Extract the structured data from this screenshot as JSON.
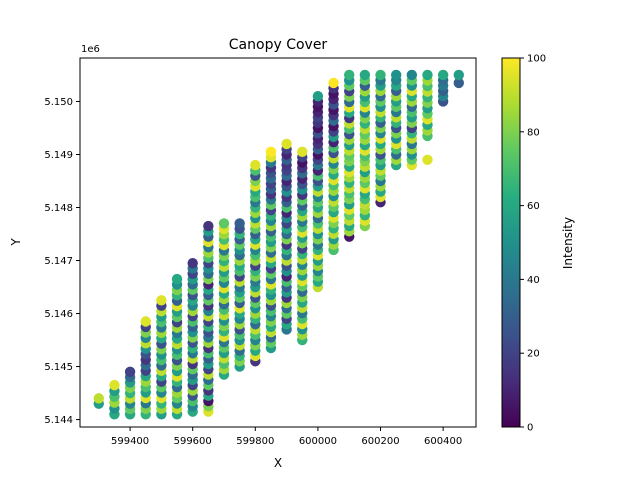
{
  "chart_data": {
    "type": "scatter",
    "title": "Canopy Cover",
    "xlabel": "X",
    "ylabel": "Y",
    "y_offset_label": "1e6",
    "xlim": [
      599240,
      600505
    ],
    "ylim": [
      5143860,
      5150820
    ],
    "x_ticks": [
      599400,
      599600,
      599800,
      600000,
      600200,
      600400
    ],
    "x_tick_labels": [
      "599400",
      "599600",
      "599800",
      "600000",
      "600200",
      "600400"
    ],
    "y_ticks": [
      5144000,
      5145000,
      5146000,
      5147000,
      5148000,
      5149000,
      5150000
    ],
    "y_tick_labels": [
      "5.144",
      "5.145",
      "5.146",
      "5.147",
      "5.148",
      "5.149",
      "5.150"
    ],
    "colorbar": {
      "label": "Intensity",
      "range": [
        0,
        100
      ],
      "ticks": [
        0,
        20,
        40,
        60,
        80,
        100
      ],
      "tick_labels": [
        "0",
        "20",
        "40",
        "60",
        "80",
        "100"
      ],
      "colormap": "viridis"
    },
    "y_step": 100,
    "columns": [
      {
        "x": 599300,
        "y_min": 5144300,
        "y_max": 5144400,
        "intensity": [
          55,
          90
        ]
      },
      {
        "x": 599350,
        "y_min": 5144100,
        "y_max": 5144650,
        "intensity": [
          60,
          50,
          85,
          70,
          55,
          95
        ]
      },
      {
        "x": 599400,
        "y_min": 5144100,
        "y_max": 5144900,
        "intensity": [
          60,
          75,
          45,
          90,
          65,
          80,
          55,
          35,
          20
        ]
      },
      {
        "x": 599450,
        "y_min": 5144100,
        "y_max": 5145850,
        "intensity": [
          65,
          80,
          40,
          95,
          55,
          70,
          85,
          60,
          20,
          35,
          15,
          25,
          50,
          90,
          45,
          80,
          20,
          95
        ]
      },
      {
        "x": 599500,
        "y_min": 5144100,
        "y_max": 5146250,
        "intensity": [
          55,
          85,
          65,
          95,
          45,
          75,
          20,
          60,
          90,
          35,
          70,
          50,
          80,
          25,
          60,
          85,
          40,
          70,
          55,
          90,
          20,
          95
        ]
      },
      {
        "x": 599550,
        "y_min": 5144100,
        "y_max": 5146650,
        "intensity": [
          60,
          90,
          45,
          75,
          85,
          35,
          65,
          95,
          55,
          80,
          25,
          70,
          50,
          90,
          60,
          40,
          85,
          20,
          75,
          55,
          95,
          30,
          65,
          80,
          50,
          60
        ]
      },
      {
        "x": 599600,
        "y_min": 5144150,
        "y_max": 5146950,
        "intensity": [
          60,
          45,
          70,
          25,
          85,
          20,
          55,
          35,
          75,
          15,
          90,
          40,
          65,
          25,
          80,
          50,
          30,
          70,
          20,
          85,
          45,
          60,
          25,
          75,
          35,
          55,
          20,
          40,
          15
        ]
      },
      {
        "x": 599650,
        "y_min": 5144150,
        "y_max": 5147650,
        "intensity": [
          95,
          80,
          5,
          60,
          15,
          75,
          35,
          90,
          20,
          55,
          30,
          70,
          15,
          85,
          40,
          25,
          65,
          20,
          90,
          45,
          15,
          75,
          30,
          60,
          10,
          80,
          35,
          50,
          20,
          70,
          85,
          40,
          95,
          30,
          55,
          15
        ]
      },
      {
        "x": 599700,
        "y_min": 5144850,
        "y_max": 5147700,
        "intensity": [
          60,
          85,
          70,
          90,
          55,
          75,
          40,
          95,
          65,
          80,
          50,
          90,
          70,
          35,
          85,
          60,
          95,
          45,
          75,
          55,
          90,
          65,
          80,
          40,
          95,
          70,
          85,
          95,
          75
        ]
      },
      {
        "x": 599750,
        "y_min": 5145000,
        "y_max": 5147700,
        "intensity": [
          55,
          80,
          65,
          35,
          90,
          50,
          70,
          25,
          85,
          45,
          60,
          95,
          30,
          75,
          55,
          40,
          90,
          20,
          70,
          60,
          85,
          35,
          50,
          75,
          30,
          65,
          25,
          30
        ]
      },
      {
        "x": 599800,
        "y_min": 5145100,
        "y_max": 5148800,
        "intensity": [
          15,
          95,
          60,
          80,
          45,
          70,
          90,
          35,
          65,
          85,
          50,
          75,
          25,
          90,
          55,
          40,
          80,
          65,
          20,
          85,
          70,
          45,
          95,
          60,
          30,
          75,
          90,
          50,
          85,
          65,
          40,
          70,
          60,
          95,
          80,
          25,
          70,
          95
        ]
      },
      {
        "x": 599850,
        "y_min": 5145350,
        "y_max": 5149050,
        "intensity": [
          55,
          75,
          35,
          90,
          60,
          80,
          45,
          70,
          25,
          85,
          50,
          65,
          95,
          40,
          75,
          20,
          60,
          90,
          35,
          80,
          55,
          70,
          30,
          85,
          45,
          65,
          20,
          75,
          40,
          15,
          30,
          20,
          35,
          25,
          15,
          40,
          95,
          100
        ]
      },
      {
        "x": 599900,
        "y_min": 5145700,
        "y_max": 5149200,
        "intensity": [
          40,
          60,
          20,
          75,
          35,
          85,
          15,
          55,
          30,
          70,
          10,
          50,
          25,
          90,
          40,
          65,
          15,
          80,
          35,
          60,
          20,
          45,
          10,
          70,
          30,
          15,
          50,
          25,
          10,
          35,
          20,
          15,
          30,
          10,
          20,
          95
        ]
      },
      {
        "x": 599950,
        "y_min": 5145500,
        "y_max": 5149050,
        "intensity": [
          65,
          85,
          50,
          95,
          70,
          40,
          90,
          60,
          80,
          35,
          75,
          95,
          55,
          85,
          45,
          90,
          65,
          20,
          80,
          55,
          95,
          70,
          40,
          85,
          60,
          30,
          75,
          15,
          50,
          25,
          10,
          35,
          15,
          5,
          20,
          95
        ]
      },
      {
        "x": 600000,
        "y_min": 5146500,
        "y_max": 5150100,
        "intensity": [
          90,
          60,
          75,
          45,
          85,
          55,
          95,
          65,
          40,
          80,
          50,
          90,
          70,
          35,
          85,
          60,
          75,
          45,
          90,
          55,
          25,
          70,
          10,
          40,
          20,
          5,
          30,
          15,
          10,
          25,
          5,
          15,
          20,
          10,
          5,
          10,
          55
        ]
      },
      {
        "x": 600050,
        "y_min": 5147200,
        "y_max": 5150350,
        "intensity": [
          70,
          85,
          55,
          90,
          65,
          80,
          95,
          60,
          75,
          90,
          50,
          85,
          70,
          95,
          60,
          80,
          45,
          90,
          25,
          70,
          10,
          55,
          20,
          5,
          35,
          15,
          5,
          25,
          10,
          5,
          15,
          100
        ]
      },
      {
        "x": 600100,
        "y_min": 5147450,
        "y_max": 5150500,
        "intensity": [
          5,
          85,
          60,
          90,
          75,
          95,
          55,
          80,
          70,
          90,
          65,
          85,
          95,
          60,
          80,
          75,
          90,
          55,
          85,
          25,
          70,
          90,
          15,
          60,
          95,
          35,
          80,
          20,
          75,
          50,
          65
        ]
      },
      {
        "x": 600150,
        "y_min": 5147650,
        "y_max": 5150500,
        "intensity": [
          80,
          95,
          65,
          85,
          90,
          70,
          60,
          95,
          75,
          85,
          55,
          90,
          80,
          70,
          95,
          60,
          85,
          75,
          90,
          65,
          80,
          45,
          95,
          70,
          55,
          85,
          30,
          75,
          60
        ]
      },
      {
        "x": 600200,
        "y_min": 5148100,
        "y_max": 5150500,
        "intensity": [
          10,
          95,
          60,
          85,
          40,
          75,
          90,
          55,
          70,
          25,
          85,
          60,
          95,
          45,
          80,
          30,
          65,
          90,
          50,
          75,
          35,
          85,
          55,
          40,
          65
        ]
      },
      {
        "x": 600250,
        "y_min": 5148800,
        "y_max": 5150500,
        "intensity": [
          60,
          85,
          35,
          70,
          95,
          50,
          80,
          25,
          65,
          90,
          40,
          75,
          55,
          85,
          30,
          60,
          45,
          50
        ]
      },
      {
        "x": 600300,
        "y_min": 5148800,
        "y_max": 5150500,
        "intensity": [
          95,
          75,
          50,
          85,
          40,
          90,
          65,
          20,
          80,
          55,
          70,
          35,
          85,
          60,
          95,
          50,
          75,
          45
        ]
      },
      {
        "x": 600350,
        "y_min": 5149350,
        "y_max": 5150500,
        "intensity": [
          70,
          85,
          60,
          95,
          75,
          55,
          80,
          65,
          90,
          70,
          85,
          60
        ]
      },
      {
        "x": 600400,
        "y_min": 5150000,
        "y_max": 5150500,
        "intensity": [
          25,
          45,
          30,
          40,
          35,
          60
        ]
      },
      {
        "x": 600450,
        "y_min": 5150350,
        "y_max": 5150500,
        "intensity": [
          30,
          55
        ]
      }
    ],
    "extra_points": [
      {
        "x": 600350,
        "y": 5148900,
        "intensity": 95
      }
    ]
  }
}
